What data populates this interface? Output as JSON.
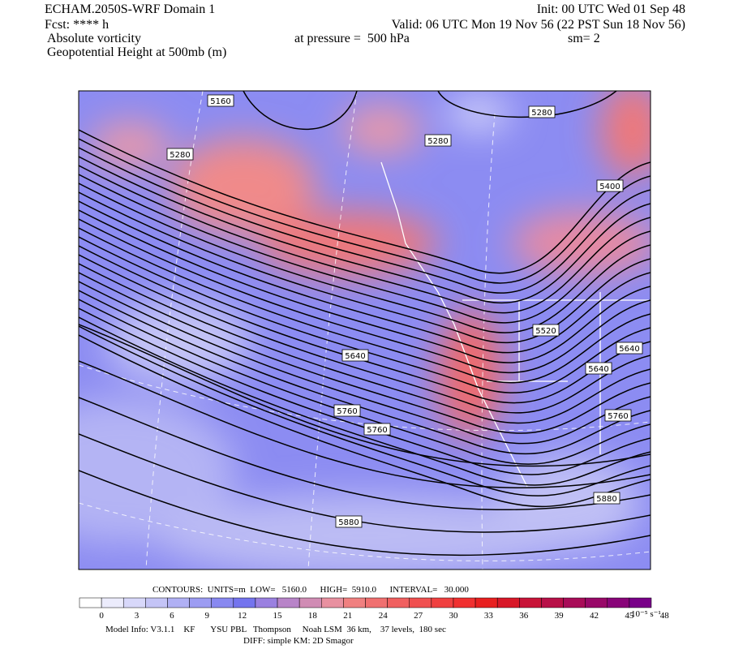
{
  "header": {
    "title": "ECHAM.2050S-WRF Domain 1",
    "init": "Init: 00 UTC Wed 01 Sep 48",
    "fcst": "Fcst: **** h",
    "valid": "Valid: 06 UTC Mon 19 Nov 56 (22 PST Sun 18 Nov 56)",
    "field1": "Absolute vorticity",
    "pressure": "at pressure =  500 hPa",
    "sm": "sm= 2",
    "field2": "Geopotential Height at 500mb (m)"
  },
  "contour_labels": [
    "5160",
    "5280",
    "5280",
    "5280",
    "5400",
    "5520",
    "5640",
    "5640",
    "5640",
    "5760",
    "5760",
    "5760",
    "5880",
    "5880"
  ],
  "contour_info": "CONTOURS:  UNITS=m  LOW=   5160.0      HIGH=  5910.0      INTERVAL=   30.000",
  "colorbar": {
    "labels": [
      "0",
      "3",
      "6",
      "9",
      "12",
      "15",
      "18",
      "21",
      "24",
      "27",
      "30",
      "33",
      "36",
      "39",
      "42",
      "45",
      "48"
    ],
    "units": "10⁻⁵ s⁻¹"
  },
  "footer": {
    "model_info": "Model Info: V3.1.1    KF       YSU PBL   Thompson     Noah LSM  36 km,    37 levels,  180 sec",
    "diff": "DIFF: simple KM: 2D Smagor"
  }
}
